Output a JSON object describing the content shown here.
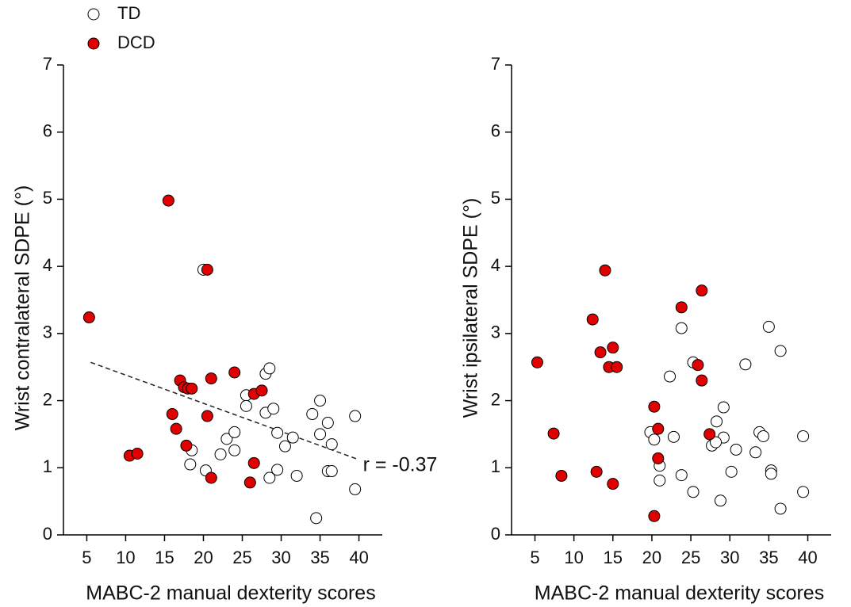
{
  "chart_data": [
    {
      "type": "scatter",
      "xlabel": "MABC-2 manual dexterity scores",
      "ylabel": "Wrist contralateral SDPE (°)",
      "xlim": [
        2,
        43
      ],
      "ylim": [
        0,
        7
      ],
      "xticks": [
        5,
        10,
        15,
        20,
        25,
        30,
        35,
        40
      ],
      "yticks": [
        0,
        1,
        2,
        3,
        4,
        5,
        6,
        7
      ],
      "legend": "upper left",
      "series": [
        {
          "name": "TD",
          "color": "#ffffff",
          "edgecolor": "#000000",
          "x": [
            20,
            28,
            28.5,
            25.5,
            25.5,
            28,
            29,
            29.5,
            31.5,
            30.5,
            23,
            24,
            22.2,
            24,
            18.5,
            18.3,
            20.3,
            28.5,
            29.5,
            32,
            34,
            35,
            35,
            36,
            36.5,
            36,
            36.5,
            39.5,
            39.5,
            34.5
          ],
          "y": [
            3.95,
            2.4,
            2.48,
            2.08,
            1.92,
            1.82,
            1.88,
            1.52,
            1.45,
            1.32,
            1.43,
            1.53,
            1.2,
            1.26,
            1.26,
            1.05,
            0.96,
            0.85,
            0.97,
            0.88,
            1.8,
            2.0,
            1.5,
            1.67,
            1.35,
            0.95,
            0.95,
            1.77,
            0.68,
            0.25
          ]
        },
        {
          "name": "DCD",
          "color": "#e00000",
          "edgecolor": "#000000",
          "x": [
            5.3,
            15.5,
            20.5,
            10.5,
            11.5,
            16,
            16.5,
            17,
            17.5,
            18,
            18.5,
            17.8,
            21,
            20.5,
            21,
            24,
            26.5,
            27.5,
            26.5,
            26
          ],
          "y": [
            3.24,
            4.98,
            3.95,
            1.18,
            1.21,
            1.8,
            1.58,
            2.3,
            2.2,
            2.18,
            2.18,
            1.33,
            2.33,
            1.77,
            0.85,
            2.42,
            2.1,
            2.15,
            1.07,
            0.78
          ]
        }
      ],
      "trendline": {
        "x": [
          5.5,
          40
        ],
        "y": [
          2.57,
          1.12
        ]
      },
      "annotation": "r = -0.37"
    },
    {
      "type": "scatter",
      "xlabel": "MABC-2 manual dexterity scores",
      "ylabel": "Wrist ipsilateral SDPE (°)",
      "xlim": [
        2,
        43
      ],
      "ylim": [
        0,
        7
      ],
      "xticks": [
        5,
        10,
        15,
        20,
        25,
        30,
        35,
        40
      ],
      "yticks": [
        0,
        1,
        2,
        3,
        4,
        5,
        6,
        7
      ],
      "series": [
        {
          "color": "#ffffff",
          "edgecolor": "#000000",
          "x": [
            23.8,
            25.3,
            22.3,
            32,
            35,
            36.5,
            19.8,
            20.3,
            22.8,
            28.3,
            29.2,
            29.2,
            27.7,
            28.2,
            30.8,
            33.3,
            33.8,
            34.3,
            35.3,
            35.3,
            39.4,
            39.4,
            21,
            21,
            23.8,
            25.3,
            28.8,
            30.2,
            36.5
          ],
          "y": [
            3.08,
            2.57,
            2.36,
            2.54,
            3.1,
            2.74,
            1.53,
            1.42,
            1.46,
            1.69,
            1.9,
            1.45,
            1.33,
            1.38,
            1.27,
            1.23,
            1.53,
            1.47,
            0.96,
            0.91,
            1.47,
            0.64,
            1.03,
            0.81,
            0.89,
            0.64,
            0.51,
            0.94,
            0.39
          ]
        },
        {
          "color": "#e00000",
          "edgecolor": "#000000",
          "x": [
            5.3,
            7.4,
            8.4,
            12.4,
            13.4,
            14,
            14.5,
            15,
            15.5,
            12.9,
            15,
            20.3,
            20.8,
            20.8,
            20.3,
            23.8,
            26.4,
            25.9,
            26.4,
            27.4
          ],
          "y": [
            2.57,
            1.51,
            0.88,
            3.21,
            2.72,
            3.94,
            2.5,
            2.79,
            2.5,
            0.94,
            0.76,
            1.91,
            1.58,
            1.14,
            0.28,
            3.39,
            3.64,
            2.53,
            2.3,
            1.5
          ]
        }
      ]
    }
  ]
}
